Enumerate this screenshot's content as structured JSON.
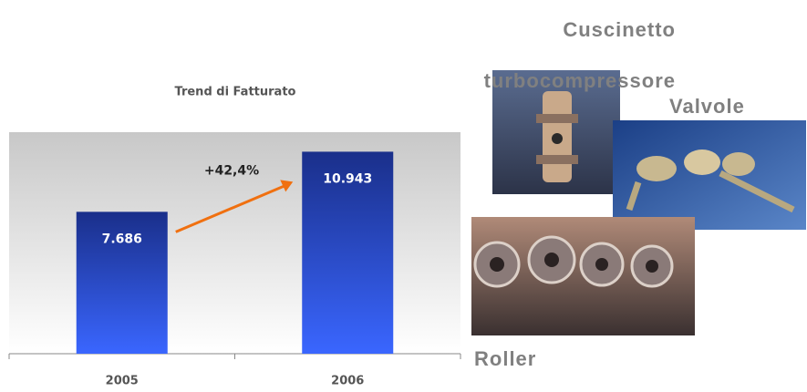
{
  "chart_data": {
    "type": "bar",
    "title": "Trend di Fatturato",
    "categories": [
      "2005",
      "2006"
    ],
    "values": [
      7686,
      10943
    ],
    "value_labels": [
      "7.686",
      "10.943"
    ],
    "color": "#2a4fd0",
    "ylim": [
      0,
      12000
    ],
    "annotation": "+42,4%",
    "annotation_color": "#f07010"
  },
  "products": [
    "Cuscinetto turbocompressore",
    "Valvole",
    "Roller"
  ]
}
